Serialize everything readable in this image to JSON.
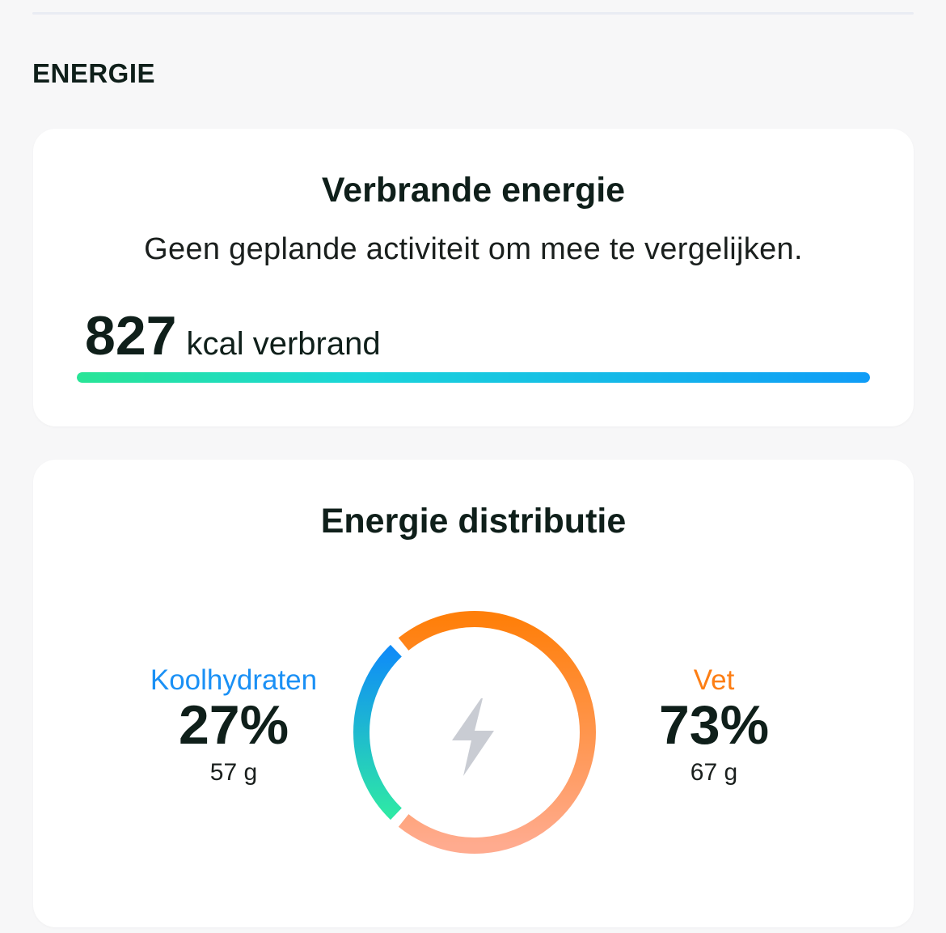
{
  "section": {
    "title": "ENERGIE"
  },
  "burned_card": {
    "title": "Verbrande energie",
    "subtitle": "Geen geplande activiteit om mee te vergelijken.",
    "kcal_value": "827",
    "kcal_unit": "kcal verbrand",
    "progress_fraction": 1.0
  },
  "distribution_card": {
    "title": "Energie distributie",
    "center_icon": "lightning-bolt-icon",
    "carbs": {
      "label": "Koolhydraten",
      "percent": "27%",
      "grams": "57 g",
      "color": "#1a90f5"
    },
    "fat": {
      "label": "Vet",
      "percent": "73%",
      "grams": "67 g",
      "color": "#fd7e14"
    }
  },
  "chart_data": {
    "type": "pie",
    "categories": [
      "Koolhydraten",
      "Vet"
    ],
    "values": [
      27,
      73
    ],
    "colors": {
      "Koolhydraten": [
        "#0f8cf7",
        "#2ee8a6"
      ],
      "Vet": [
        "#ff7f0a",
        "#ffab8f"
      ]
    },
    "style": "donut"
  }
}
